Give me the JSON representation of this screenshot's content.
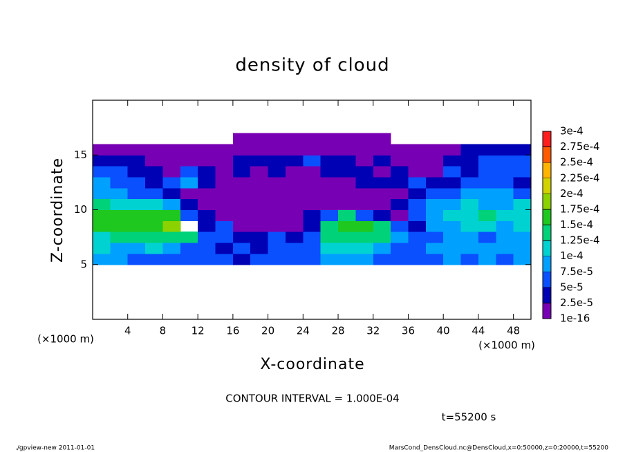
{
  "chart_data": {
    "type": "contour",
    "title": "density of cloud",
    "xlabel": "X-coordinate",
    "ylabel": "Z-coordinate",
    "xunit": "(×1000 m)",
    "yunit": "(×1000 m)",
    "xlim": [
      0,
      50
    ],
    "ylim": [
      0,
      20
    ],
    "xticks": [
      4,
      8,
      12,
      16,
      20,
      24,
      28,
      32,
      36,
      40,
      44,
      48
    ],
    "yticks": [
      5,
      10,
      15
    ],
    "x": [
      1,
      3,
      5,
      7,
      9,
      11,
      13,
      15,
      17,
      19,
      21,
      23,
      25,
      27,
      29,
      31,
      33,
      35,
      37,
      39,
      41,
      43,
      45,
      47,
      49
    ],
    "y": [
      5.5,
      6.5,
      7.5,
      8.5,
      9.5,
      10.5,
      11.5,
      12.5,
      13.5,
      14.5,
      15.5,
      16.5
    ],
    "z": [
      [
        9e-05,
        9e-05,
        6e-05,
        6e-05,
        6e-05,
        6e-05,
        6e-05,
        6e-05,
        3.5e-05,
        6e-05,
        6e-05,
        6e-05,
        6e-05,
        9e-05,
        9e-05,
        9e-05,
        6e-05,
        6e-05,
        6e-05,
        6e-05,
        9e-05,
        6e-05,
        9e-05,
        6e-05,
        9e-05
      ],
      [
        0.00011,
        9e-05,
        9e-05,
        0.00011,
        9e-05,
        6e-05,
        6e-05,
        3.5e-05,
        6e-05,
        3.5e-05,
        6e-05,
        6e-05,
        6e-05,
        0.00011,
        0.00011,
        0.00011,
        9e-05,
        6e-05,
        6e-05,
        9e-05,
        9e-05,
        9e-05,
        9e-05,
        9e-05,
        9e-05
      ],
      [
        0.00011,
        0.00014,
        0.00014,
        0.00014,
        0.00014,
        0.00014,
        6e-05,
        6e-05,
        3.5e-05,
        3.5e-05,
        6e-05,
        3.5e-05,
        6e-05,
        0.00014,
        0.00014,
        0.00014,
        0.00014,
        9e-05,
        6e-05,
        6e-05,
        9e-05,
        9e-05,
        6e-05,
        9e-05,
        9e-05
      ],
      [
        0.00016,
        0.00016,
        0.00016,
        0.00016,
        0.00018,
        null,
        3.5e-05,
        6e-05,
        1e-05,
        1e-05,
        1e-05,
        1e-05,
        3.5e-05,
        0.00014,
        0.00016,
        0.00016,
        0.00014,
        6e-05,
        3.5e-05,
        9e-05,
        9e-05,
        0.00011,
        0.00011,
        9e-05,
        0.00011
      ],
      [
        0.00016,
        0.00016,
        0.00016,
        0.00016,
        0.00016,
        6e-05,
        3.5e-05,
        1e-05,
        1e-05,
        1e-05,
        1e-05,
        1e-05,
        3.5e-05,
        6e-05,
        0.00014,
        6e-05,
        3.5e-05,
        1e-05,
        6e-05,
        9e-05,
        0.00011,
        0.00011,
        0.00014,
        0.00011,
        0.00011
      ],
      [
        0.00014,
        0.00011,
        0.00011,
        0.00011,
        9e-05,
        3.5e-05,
        1e-05,
        1e-05,
        1e-05,
        1e-05,
        1e-05,
        1e-05,
        1e-05,
        1e-05,
        1e-05,
        1e-05,
        1e-05,
        3.5e-05,
        6e-05,
        9e-05,
        9e-05,
        0.00011,
        9e-05,
        9e-05,
        0.00011
      ],
      [
        9e-05,
        9e-05,
        6e-05,
        6e-05,
        3.5e-05,
        1e-05,
        1e-05,
        1e-05,
        1e-05,
        1e-05,
        1e-05,
        1e-05,
        1e-05,
        1e-05,
        1e-05,
        1e-05,
        1e-05,
        1e-05,
        3.5e-05,
        6e-05,
        6e-05,
        9e-05,
        9e-05,
        9e-05,
        6e-05
      ],
      [
        9e-05,
        6e-05,
        6e-05,
        3.5e-05,
        6e-05,
        9e-05,
        3.5e-05,
        1e-05,
        1e-05,
        1e-05,
        1e-05,
        1e-05,
        1e-05,
        1e-05,
        1e-05,
        3.5e-05,
        3.5e-05,
        3.5e-05,
        6e-05,
        3.5e-05,
        3.5e-05,
        6e-05,
        6e-05,
        6e-05,
        3.5e-05
      ],
      [
        6e-05,
        6e-05,
        3.5e-05,
        3.5e-05,
        1e-05,
        6e-05,
        3.5e-05,
        1e-05,
        3.5e-05,
        1e-05,
        3.5e-05,
        1e-05,
        1e-05,
        3.5e-05,
        3.5e-05,
        3.5e-05,
        1e-05,
        3.5e-05,
        1e-05,
        1e-05,
        6e-05,
        3.5e-05,
        6e-05,
        6e-05,
        6e-05
      ],
      [
        3.5e-05,
        3.5e-05,
        3.5e-05,
        1e-05,
        1e-05,
        1e-05,
        1e-05,
        1e-05,
        3.5e-05,
        3.5e-05,
        3.5e-05,
        3.5e-05,
        6e-05,
        3.5e-05,
        3.5e-05,
        1e-05,
        3.5e-05,
        1e-05,
        1e-05,
        1e-05,
        3.5e-05,
        3.5e-05,
        6e-05,
        6e-05,
        6e-05
      ],
      [
        1e-05,
        1e-05,
        1e-05,
        1e-05,
        1e-05,
        1e-05,
        1e-05,
        1e-05,
        1e-05,
        1e-05,
        1e-05,
        1e-05,
        1e-05,
        1e-05,
        1e-05,
        1e-05,
        1e-05,
        1e-05,
        1e-05,
        1e-05,
        1e-05,
        3.5e-05,
        3.5e-05,
        3.5e-05,
        3.5e-05
      ],
      [
        null,
        null,
        null,
        null,
        null,
        null,
        null,
        null,
        1e-05,
        1e-05,
        1e-05,
        1e-05,
        1e-05,
        1e-05,
        1e-05,
        1e-05,
        1e-05,
        null,
        null,
        null,
        null,
        null,
        null,
        null,
        null
      ]
    ],
    "colorbar": {
      "levels": [
        {
          "value": 1e-16,
          "label": "1e-16"
        },
        {
          "value": 2.5e-05,
          "label": "2.5e-5"
        },
        {
          "value": 5e-05,
          "label": "5e-5"
        },
        {
          "value": 7.5e-05,
          "label": "7.5e-5"
        },
        {
          "value": 0.0001,
          "label": "1e-4"
        },
        {
          "value": 0.000125,
          "label": "1.25e-4"
        },
        {
          "value": 0.00015,
          "label": "1.5e-4"
        },
        {
          "value": 0.000175,
          "label": "1.75e-4"
        },
        {
          "value": 0.0002,
          "label": "2e-4"
        },
        {
          "value": 0.000225,
          "label": "2.25e-4"
        },
        {
          "value": 0.00025,
          "label": "2.5e-4"
        },
        {
          "value": 0.000275,
          "label": "2.75e-4"
        },
        {
          "value": 0.0003,
          "label": "3e-4"
        }
      ],
      "colors": [
        "#7800b4",
        "#0000b4",
        "#0a50ff",
        "#00a0ff",
        "#00d2d2",
        "#00d27a",
        "#1ec81e",
        "#8cd200",
        "#d2d200",
        "#ffb400",
        "#ff5a00",
        "#ff1e1e",
        "#ff9090"
      ]
    },
    "annotation": "CONTOUR INTERVAL = 1.000E-04",
    "time": "t=55200 s",
    "footer_left": "./gpview-new  2011-01-01",
    "footer_right": "MarsCond_DensCloud.nc@DensCloud,x=0:50000,z=0:20000,t=55200"
  }
}
